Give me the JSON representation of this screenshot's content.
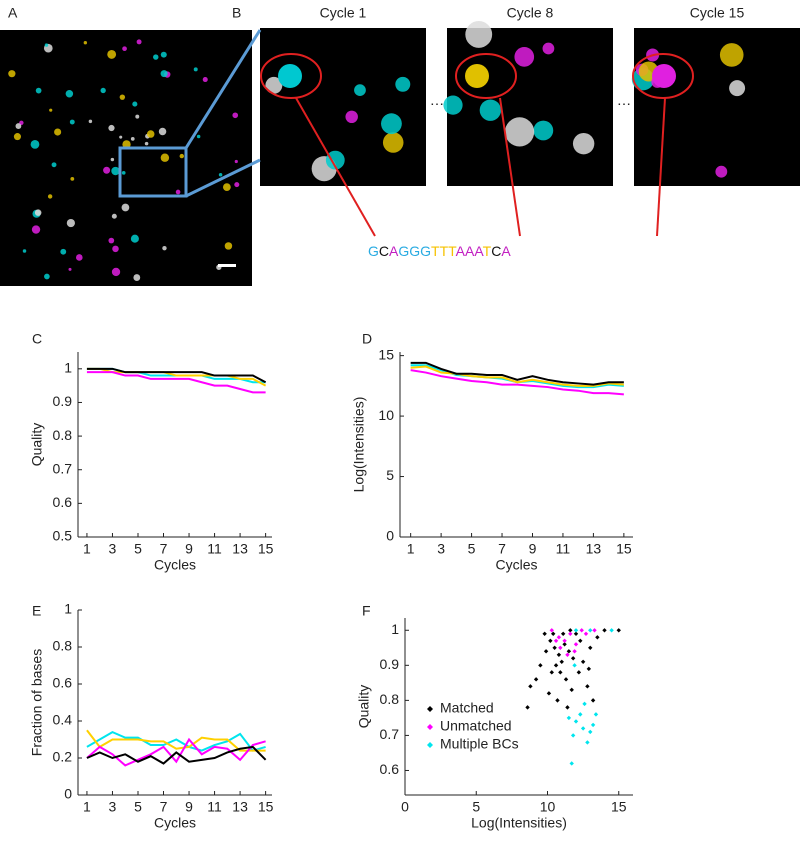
{
  "panels": {
    "labels": [
      "A",
      "B",
      "C",
      "D",
      "E",
      "F"
    ],
    "cycle_titles": [
      "Cycle 1",
      "Cycle 8",
      "Cycle 15"
    ]
  },
  "sequence": {
    "letters": [
      {
        "text": "G",
        "color": "#29abe2"
      },
      {
        "text": "C",
        "color": "#111111"
      },
      {
        "text": "A",
        "color": "#c21fc2"
      },
      {
        "text": "G",
        "color": "#29abe2"
      },
      {
        "text": "G",
        "color": "#29abe2"
      },
      {
        "text": "G",
        "color": "#29abe2"
      },
      {
        "text": "T",
        "color": "#f6c200"
      },
      {
        "text": "T",
        "color": "#f6c200"
      },
      {
        "text": "T",
        "color": "#f6c200"
      },
      {
        "text": "A",
        "color": "#c21fc2"
      },
      {
        "text": "A",
        "color": "#c21fc2"
      },
      {
        "text": "A",
        "color": "#c21fc2"
      },
      {
        "text": "T",
        "color": "#f6c200"
      },
      {
        "text": "C",
        "color": "#111111"
      },
      {
        "text": "A",
        "color": "#c21fc2"
      }
    ]
  },
  "chart_data": [
    {
      "type": "line",
      "x_label": "Cycles",
      "y_label": "Quality",
      "x": [
        1,
        2,
        3,
        4,
        5,
        6,
        7,
        8,
        9,
        10,
        11,
        12,
        13,
        14,
        15
      ],
      "xlim": [
        0.3,
        15.5
      ],
      "xticks": [
        1,
        3,
        5,
        7,
        9,
        11,
        13,
        15
      ],
      "ylim": [
        0.5,
        1.05
      ],
      "yticks": [
        0.5,
        0.6,
        0.7,
        0.8,
        0.9,
        1
      ],
      "series": [
        {
          "color": "#00e5ee",
          "values": [
            1,
            1,
            1,
            0.99,
            0.99,
            0.98,
            0.98,
            0.98,
            0.98,
            0.98,
            0.97,
            0.97,
            0.97,
            0.96,
            0.96
          ]
        },
        {
          "color": "#ffd000",
          "values": [
            1,
            1,
            0.99,
            0.99,
            0.99,
            0.99,
            0.99,
            0.98,
            0.98,
            0.98,
            0.98,
            0.98,
            0.97,
            0.97,
            0.95
          ]
        },
        {
          "color": "#ff00ff",
          "values": [
            0.99,
            0.99,
            0.99,
            0.98,
            0.98,
            0.97,
            0.97,
            0.97,
            0.97,
            0.96,
            0.95,
            0.95,
            0.94,
            0.93,
            0.93
          ]
        },
        {
          "color": "#000000",
          "values": [
            1,
            1,
            1,
            0.99,
            0.99,
            0.99,
            0.99,
            0.99,
            0.99,
            0.99,
            0.98,
            0.98,
            0.98,
            0.98,
            0.96
          ]
        }
      ]
    },
    {
      "type": "line",
      "x_label": "Cycles",
      "y_label": "Log(Intensities)",
      "x": [
        1,
        2,
        3,
        4,
        5,
        6,
        7,
        8,
        9,
        10,
        11,
        12,
        13,
        14,
        15
      ],
      "xlim": [
        0.3,
        15.6
      ],
      "xticks": [
        1,
        3,
        5,
        7,
        9,
        11,
        13,
        15
      ],
      "ylim": [
        0,
        15.3
      ],
      "yticks": [
        0,
        5,
        10,
        15
      ],
      "series": [
        {
          "color": "#00e5ee",
          "values": [
            14.2,
            14.2,
            13.8,
            13.4,
            13.3,
            13.2,
            13.1,
            12.8,
            12.9,
            12.7,
            12.5,
            12.4,
            12.4,
            12.6,
            12.5
          ]
        },
        {
          "color": "#ffd000",
          "values": [
            14.0,
            14.1,
            13.6,
            13.5,
            13.3,
            13.2,
            13.2,
            12.8,
            13.0,
            12.8,
            12.6,
            12.5,
            12.5,
            12.7,
            12.6
          ]
        },
        {
          "color": "#ff00ff",
          "values": [
            13.8,
            13.6,
            13.3,
            13.1,
            12.9,
            12.8,
            12.6,
            12.6,
            12.5,
            12.4,
            12.2,
            12.1,
            11.9,
            11.9,
            11.8
          ]
        },
        {
          "color": "#000000",
          "values": [
            14.4,
            14.4,
            13.9,
            13.5,
            13.5,
            13.4,
            13.4,
            13.0,
            13.3,
            13.0,
            12.8,
            12.7,
            12.6,
            12.8,
            12.8
          ]
        }
      ]
    },
    {
      "type": "line",
      "x_label": "Cycles",
      "y_label": "Fraction of bases",
      "x": [
        1,
        2,
        3,
        4,
        5,
        6,
        7,
        8,
        9,
        10,
        11,
        12,
        13,
        14,
        15
      ],
      "xlim": [
        0.3,
        15.5
      ],
      "xticks": [
        1,
        3,
        5,
        7,
        9,
        11,
        13,
        15
      ],
      "ylim": [
        0,
        1
      ],
      "yticks": [
        0,
        0.2,
        0.4,
        0.6,
        0.8,
        1
      ],
      "series": [
        {
          "color": "#00e5ee",
          "values": [
            0.26,
            0.3,
            0.34,
            0.31,
            0.31,
            0.27,
            0.27,
            0.3,
            0.26,
            0.24,
            0.27,
            0.29,
            0.33,
            0.24,
            0.26
          ]
        },
        {
          "color": "#ffd000",
          "values": [
            0.35,
            0.26,
            0.3,
            0.3,
            0.3,
            0.29,
            0.29,
            0.25,
            0.26,
            0.31,
            0.3,
            0.3,
            0.24,
            0.24,
            0.24
          ]
        },
        {
          "color": "#ff00ff",
          "values": [
            0.2,
            0.26,
            0.22,
            0.16,
            0.19,
            0.22,
            0.26,
            0.18,
            0.3,
            0.22,
            0.26,
            0.25,
            0.19,
            0.27,
            0.29
          ]
        },
        {
          "color": "#000000",
          "values": [
            0.2,
            0.23,
            0.2,
            0.22,
            0.18,
            0.21,
            0.17,
            0.23,
            0.18,
            0.19,
            0.2,
            0.23,
            0.25,
            0.26,
            0.19
          ]
        }
      ]
    },
    {
      "type": "scatter",
      "x_label": "Log(Intensities)",
      "y_label": "Quality",
      "legend": "lower left",
      "xlim": [
        0,
        16
      ],
      "xticks": [
        0,
        5,
        10,
        15
      ],
      "ylim": [
        0.53,
        1.035
      ],
      "yticks": [
        0.6,
        0.7,
        0.8,
        0.9,
        1
      ],
      "series": [
        {
          "name": "Matched",
          "color": "#000000",
          "x": [
            9.8,
            10.2,
            10.5,
            10.8,
            11.0,
            11.2,
            11.5,
            10.6,
            10.9,
            11.3,
            9.5,
            9.2,
            8.8,
            10.1,
            11.7,
            12.2,
            12.5,
            13.0,
            13.5,
            14.0,
            15.0,
            12.0,
            11.8,
            10.4,
            12.8,
            13.2,
            11.4,
            10.7,
            12.3,
            9.9,
            10.3,
            11.1,
            8.6,
            12.9,
            11.6
          ],
          "values": [
            0.99,
            0.97,
            0.95,
            0.93,
            0.91,
            0.96,
            0.94,
            0.9,
            0.88,
            0.86,
            0.9,
            0.86,
            0.84,
            0.82,
            0.83,
            0.88,
            0.91,
            0.95,
            0.98,
            1.0,
            1.0,
            0.99,
            0.92,
            0.99,
            0.84,
            0.8,
            0.78,
            0.8,
            0.97,
            0.94,
            0.88,
            0.99,
            0.78,
            0.89,
            1.0
          ]
        },
        {
          "name": "Unmatched",
          "color": "#ff00ff",
          "x": [
            10.3,
            10.8,
            11.2,
            11.6,
            12.0,
            12.4,
            10.9,
            11.4,
            12.7,
            13.3,
            10.6,
            11.9
          ],
          "values": [
            1.0,
            0.98,
            0.97,
            0.99,
            0.96,
            1.0,
            0.95,
            0.93,
            0.99,
            1.0,
            0.97,
            0.94
          ]
        },
        {
          "name": "Multiple BCs",
          "color": "#00e5ee",
          "x": [
            12.0,
            13.0,
            14.5,
            11.9,
            12.3,
            12.0,
            11.8,
            12.5,
            13.0,
            11.5,
            12.6,
            13.4,
            11.7,
            12.8,
            13.2
          ],
          "values": [
            1.0,
            1.0,
            1.0,
            0.9,
            0.76,
            0.74,
            0.7,
            0.72,
            0.71,
            0.75,
            0.79,
            0.76,
            0.62,
            0.68,
            0.73
          ]
        }
      ]
    }
  ]
}
